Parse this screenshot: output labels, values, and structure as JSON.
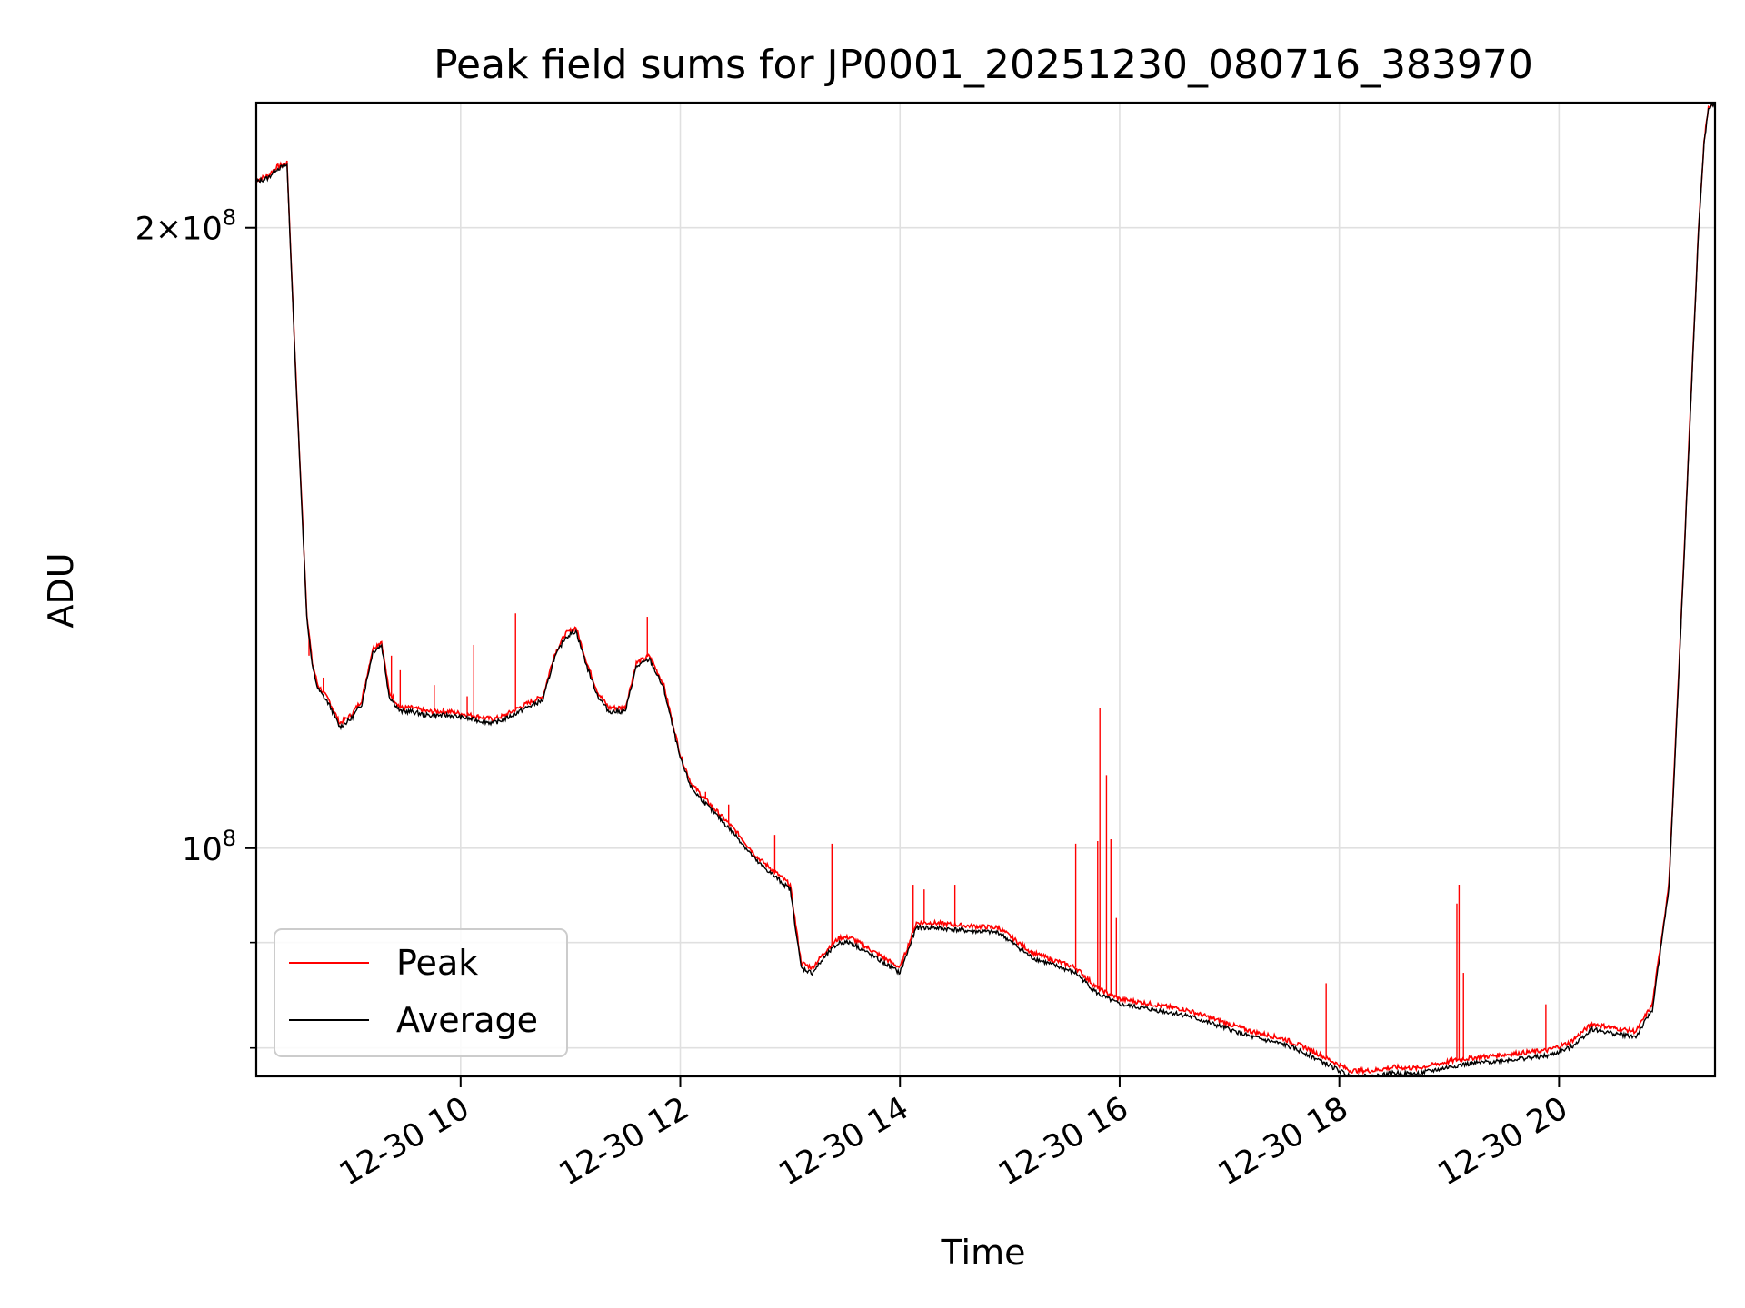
{
  "chart_data": {
    "type": "line",
    "title": "Peak field sums for JP0001_20251230_080716_383970",
    "xlabel": "Time",
    "ylabel": "ADU",
    "yscale": "log",
    "grid": true,
    "legend_position": "lower-left",
    "xlim": [
      8.14,
      21.42
    ],
    "ylim": [
      77500000,
      230000000
    ],
    "x_ticks": [
      {
        "value": 10,
        "label": "12-30 10"
      },
      {
        "value": 12,
        "label": "12-30 12"
      },
      {
        "value": 14,
        "label": "12-30 14"
      },
      {
        "value": 16,
        "label": "12-30 16"
      },
      {
        "value": 18,
        "label": "12-30 18"
      },
      {
        "value": 20,
        "label": "12-30 20"
      }
    ],
    "y_ticks": [
      {
        "value": 100000000,
        "base": "10",
        "exp": "8",
        "mult": ""
      },
      {
        "value": 200000000,
        "base": "10",
        "exp": "8",
        "mult": "2×"
      }
    ],
    "y_minor_ticks": [
      80000000,
      90000000
    ],
    "series": [
      {
        "name": "Peak",
        "color": "#ff0000",
        "x": [
          8.14,
          8.25,
          8.32,
          8.42,
          8.5,
          8.6,
          8.65,
          8.7,
          8.75,
          8.8,
          8.9,
          9.0,
          9.1,
          9.2,
          9.28,
          9.35,
          9.45,
          9.55,
          9.7,
          9.9,
          10.1,
          10.3,
          10.4,
          10.6,
          10.75,
          10.85,
          10.95,
          11.05,
          11.15,
          11.25,
          11.35,
          11.5,
          11.6,
          11.72,
          11.85,
          12.0,
          12.1,
          12.2,
          12.35,
          12.5,
          12.7,
          12.85,
          13.0,
          13.1,
          13.2,
          13.35,
          13.45,
          13.55,
          13.7,
          13.85,
          14.0,
          14.15,
          14.3,
          14.6,
          14.9,
          15.2,
          15.6,
          15.8,
          16.0,
          16.3,
          16.6,
          16.9,
          17.2,
          17.5,
          17.7,
          17.9,
          18.1,
          18.3,
          18.5,
          18.7,
          18.9,
          19.1,
          19.3,
          19.6,
          19.9,
          20.1,
          20.3,
          20.5,
          20.7,
          20.85,
          21.0,
          21.1,
          21.2,
          21.27,
          21.32,
          21.36,
          21.42
        ],
        "y": [
          211000000,
          212000000,
          214000000,
          215000000,
          170000000,
          130000000,
          123000000,
          120000000,
          119000000,
          118000000,
          115000000,
          116000000,
          118000000,
          125000000,
          126000000,
          119000000,
          117000000,
          117000000,
          116500000,
          116500000,
          116000000,
          115500000,
          116000000,
          117500000,
          118500000,
          124000000,
          127000000,
          128000000,
          123000000,
          119000000,
          117000000,
          117000000,
          123000000,
          124000000,
          120000000,
          111000000,
          107500000,
          106000000,
          104000000,
          102000000,
          99000000,
          97500000,
          96000000,
          88000000,
          87500000,
          89500000,
          90500000,
          90500000,
          89500000,
          88500000,
          87500000,
          92000000,
          92000000,
          91700000,
          91500000,
          89000000,
          87500000,
          85500000,
          84500000,
          84000000,
          83500000,
          82500000,
          81500000,
          80800000,
          80000000,
          79000000,
          78000000,
          78000000,
          78300000,
          78200000,
          78600000,
          79000000,
          79200000,
          79500000,
          79800000,
          80500000,
          82200000,
          81800000,
          81500000,
          84000000,
          96000000,
          125000000,
          165000000,
          200000000,
          220000000,
          229000000,
          230000000
        ]
      },
      {
        "name": "Average",
        "color": "#000000",
        "x": [
          8.14,
          8.25,
          8.32,
          8.42,
          8.5,
          8.6,
          8.65,
          8.7,
          8.75,
          8.8,
          8.9,
          9.0,
          9.1,
          9.2,
          9.28,
          9.35,
          9.45,
          9.55,
          9.7,
          9.9,
          10.1,
          10.3,
          10.4,
          10.6,
          10.75,
          10.85,
          10.95,
          11.05,
          11.15,
          11.25,
          11.35,
          11.5,
          11.6,
          11.72,
          11.85,
          12.0,
          12.1,
          12.2,
          12.35,
          12.5,
          12.7,
          12.85,
          13.0,
          13.1,
          13.2,
          13.35,
          13.45,
          13.55,
          13.7,
          13.85,
          14.0,
          14.15,
          14.3,
          14.6,
          14.9,
          15.2,
          15.6,
          15.8,
          16.0,
          16.3,
          16.6,
          16.9,
          17.2,
          17.5,
          17.7,
          17.9,
          18.1,
          18.3,
          18.5,
          18.7,
          18.9,
          19.1,
          19.3,
          19.6,
          19.9,
          20.1,
          20.3,
          20.5,
          20.7,
          20.85,
          21.0,
          21.1,
          21.2,
          21.27,
          21.32,
          21.36,
          21.42
        ],
        "y": [
          210500000,
          211500000,
          213500000,
          214500000,
          169500000,
          129500000,
          122500000,
          119500000,
          118500000,
          117500000,
          114500000,
          115500000,
          117500000,
          124500000,
          125500000,
          118500000,
          116500000,
          116500000,
          116000000,
          116000000,
          115500000,
          115000000,
          115500000,
          117000000,
          118000000,
          123500000,
          126500000,
          127500000,
          122500000,
          118500000,
          116500000,
          116500000,
          122500000,
          123500000,
          119500000,
          110500000,
          107000000,
          105500000,
          103500000,
          101500000,
          98500000,
          97000000,
          95500000,
          87500000,
          87000000,
          89000000,
          90000000,
          90000000,
          89000000,
          88000000,
          87000000,
          91500000,
          91500000,
          91200000,
          91000000,
          88500000,
          87000000,
          85000000,
          84000000,
          83500000,
          83000000,
          82000000,
          81000000,
          80300000,
          79500000,
          78500000,
          77500000,
          77500000,
          77800000,
          77700000,
          78100000,
          78500000,
          78700000,
          79000000,
          79300000,
          80000000,
          81700000,
          81300000,
          81000000,
          83500000,
          95500000,
          124500000,
          164500000,
          199500000,
          219500000,
          228500000,
          229500000
        ]
      }
    ],
    "spikes": [
      {
        "x": 8.62,
        "y": 124000000
      },
      {
        "x": 8.75,
        "y": 121000000
      },
      {
        "x": 9.37,
        "y": 124000000
      },
      {
        "x": 9.45,
        "y": 122000000
      },
      {
        "x": 9.76,
        "y": 120000000
      },
      {
        "x": 10.06,
        "y": 118500000
      },
      {
        "x": 10.12,
        "y": 125500000
      },
      {
        "x": 10.5,
        "y": 130000000
      },
      {
        "x": 11.7,
        "y": 129500000
      },
      {
        "x": 11.3,
        "y": 118000000
      },
      {
        "x": 12.23,
        "y": 106500000
      },
      {
        "x": 12.44,
        "y": 105000000
      },
      {
        "x": 12.86,
        "y": 101500000
      },
      {
        "x": 13.38,
        "y": 100500000
      },
      {
        "x": 14.12,
        "y": 96000000
      },
      {
        "x": 14.22,
        "y": 95500000
      },
      {
        "x": 14.5,
        "y": 96000000
      },
      {
        "x": 15.6,
        "y": 100500000
      },
      {
        "x": 15.8,
        "y": 100800000
      },
      {
        "x": 15.82,
        "y": 117000000
      },
      {
        "x": 15.88,
        "y": 108500000
      },
      {
        "x": 15.92,
        "y": 101000000
      },
      {
        "x": 15.97,
        "y": 92500000
      },
      {
        "x": 17.88,
        "y": 86000000
      },
      {
        "x": 19.07,
        "y": 94000000
      },
      {
        "x": 19.09,
        "y": 96000000
      },
      {
        "x": 19.13,
        "y": 87000000
      },
      {
        "x": 19.88,
        "y": 84000000
      }
    ]
  }
}
